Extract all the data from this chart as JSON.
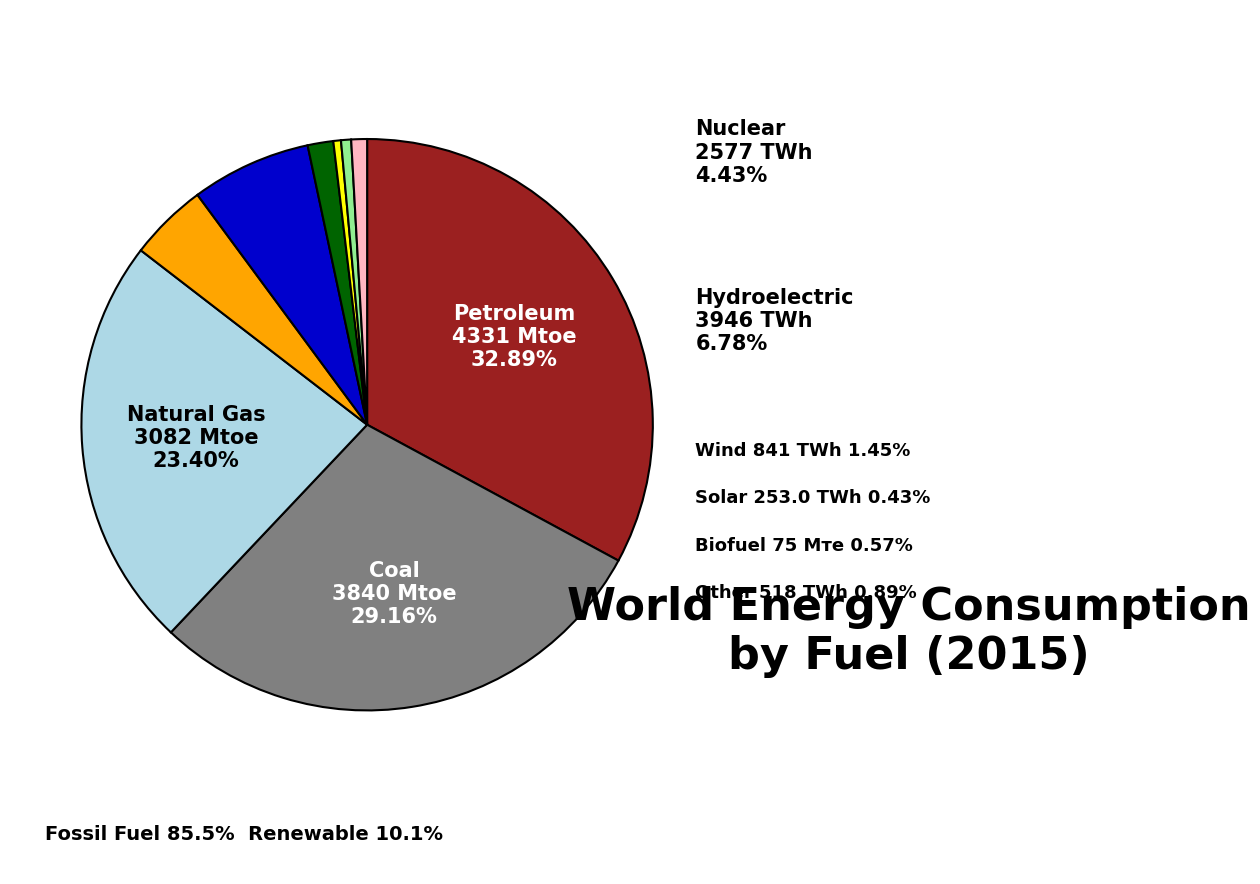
{
  "slices": [
    {
      "label": "Petroleum\n4331 Mtoe\n32.89%",
      "value": 32.89,
      "color": "#9B2020",
      "text_color": "white",
      "inside": true
    },
    {
      "label": "Coal\n3840 Mtoe\n29.16%",
      "value": 29.16,
      "color": "#808080",
      "text_color": "white",
      "inside": true
    },
    {
      "label": "Natural Gas\n3082 Mtoe\n23.40%",
      "value": 23.4,
      "color": "#ADD8E6",
      "text_color": "black",
      "inside": true
    },
    {
      "label": "Nuclear\n2577 TWh\n4.43%",
      "value": 4.43,
      "color": "#FFA500",
      "text_color": "black",
      "inside": false
    },
    {
      "label": "Hydroelectric\n3946 TWh\n6.78%",
      "value": 6.78,
      "color": "#0000CD",
      "text_color": "black",
      "inside": false
    },
    {
      "label": "Wind 841 TWh 1.45%",
      "value": 1.45,
      "color": "#006400",
      "text_color": "black",
      "inside": false
    },
    {
      "label": "Solar 253.0 TWh 0.43%",
      "value": 0.43,
      "color": "#FFFF00",
      "text_color": "black",
      "inside": false
    },
    {
      "label": "Biofuel 75 Mᴛe 0.57%",
      "value": 0.57,
      "color": "#90EE90",
      "text_color": "black",
      "inside": false
    },
    {
      "label": "Other 518 TWh 0.89%",
      "value": 0.89,
      "color": "#FFB6C1",
      "text_color": "black",
      "inside": false
    }
  ],
  "title": "World Energy Consumption\nby Fuel (2015)",
  "title_fontsize": 32,
  "title_fontweight": "bold",
  "footnote": "Fossil Fuel 85.5%  Renewable 10.1%",
  "footnote_fontsize": 14,
  "footnote_fontweight": "bold",
  "background_color": "#FFFFFF"
}
